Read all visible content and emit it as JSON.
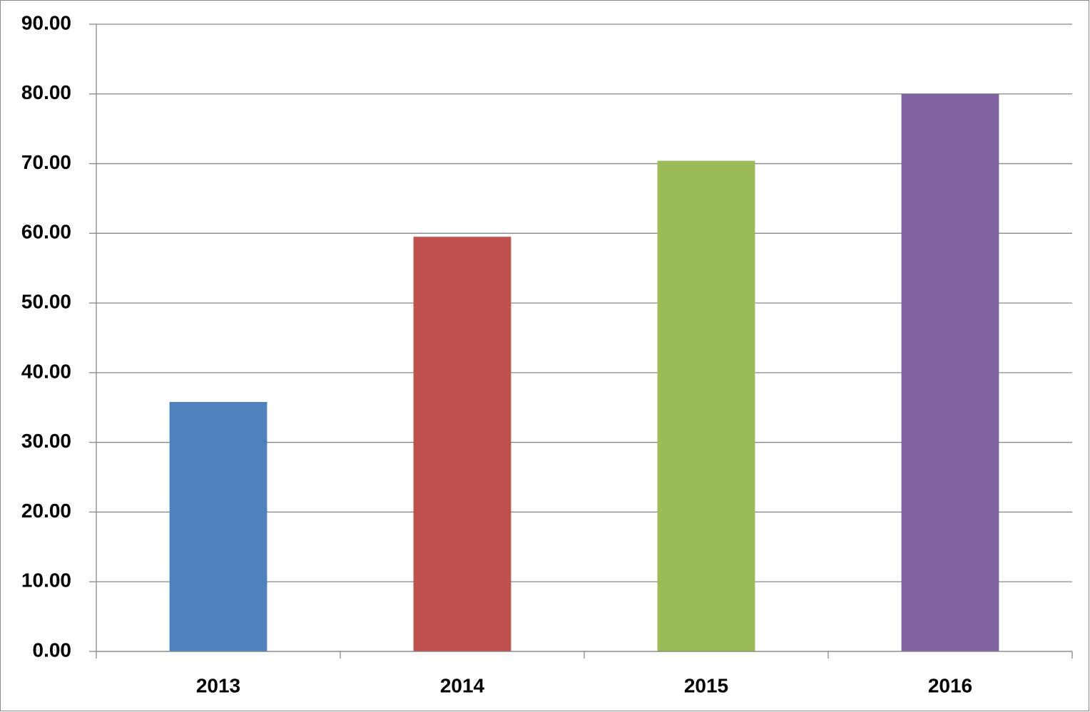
{
  "chart_data": {
    "type": "bar",
    "categories": [
      "2013",
      "2014",
      "2015",
      "2016"
    ],
    "values": [
      35.8,
      59.5,
      70.4,
      80.0
    ],
    "colors": [
      "#4f81bd",
      "#c0504d",
      "#9bbb59",
      "#8064a2"
    ],
    "ylim": [
      0,
      90
    ],
    "yticks": [
      {
        "value": 0,
        "label": "0.00"
      },
      {
        "value": 10,
        "label": "10.00"
      },
      {
        "value": 20,
        "label": "20.00"
      },
      {
        "value": 30,
        "label": "30.00"
      },
      {
        "value": 40,
        "label": "40.00"
      },
      {
        "value": 50,
        "label": "50.00"
      },
      {
        "value": 60,
        "label": "60.00"
      },
      {
        "value": 70,
        "label": "70.00"
      },
      {
        "value": 80,
        "label": "80.00"
      },
      {
        "value": 90,
        "label": "90.00"
      }
    ],
    "grid": true
  }
}
